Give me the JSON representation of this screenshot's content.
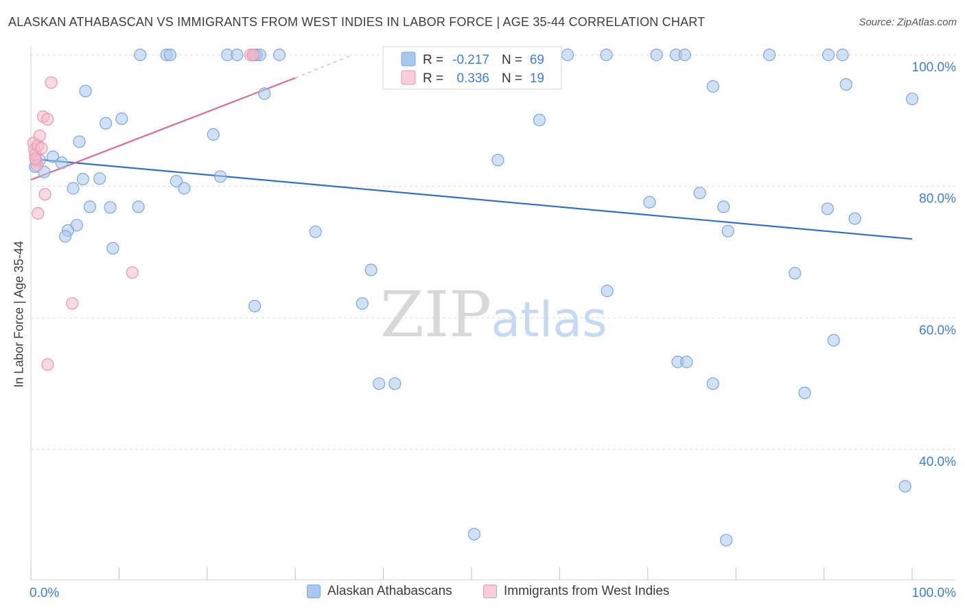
{
  "header": {
    "title": "ALASKAN ATHABASCAN VS IMMIGRANTS FROM WEST INDIES IN LABOR FORCE | AGE 35-44 CORRELATION CHART",
    "source": "Source: ZipAtlas.com"
  },
  "watermark": {
    "zip": "ZIP",
    "atlas": "atlas"
  },
  "colors": {
    "blue_fill": "#a9c8ef",
    "blue_stroke": "#7aa6dd",
    "blue_line": "#2f6fcc",
    "pink_fill": "#f5b9cb",
    "pink_stroke": "#e996b0",
    "pink_line": "#e06a94",
    "grid": "#d9d9d9",
    "axis_text": "#3f7fd0"
  },
  "chart_data": {
    "type": "scatter",
    "title": "ALASKAN ATHABASCAN VS IMMIGRANTS FROM WEST INDIES IN LABOR FORCE | AGE 35-44 CORRELATION CHART",
    "xlabel": "",
    "ylabel": "In Labor Force | Age 35-44",
    "xlim": [
      0,
      100
    ],
    "ylim": [
      20,
      101
    ],
    "x_tick_labels": [
      "0.0%",
      "100.0%"
    ],
    "y_ticks": [
      40,
      60,
      80,
      100
    ],
    "y_tick_labels": [
      "40.0%",
      "60.0%",
      "80.0%",
      "100.0%"
    ],
    "grid": true,
    "legend": [
      {
        "name": "Alaskan Athabascans",
        "R_label": "R =",
        "R": "-0.217",
        "N_label": "N =",
        "N": "69"
      },
      {
        "name": "Immigrants from West Indies",
        "R_label": "R =",
        "R": "0.336",
        "N_label": "N =",
        "N": "19"
      }
    ],
    "series": [
      {
        "name": "Alaskan Athabascans",
        "trend": {
          "x0": 0,
          "y0": 84.2,
          "x1": 100,
          "y1": 72.0
        },
        "points": [
          [
            0.5,
            83.0
          ],
          [
            1.0,
            84.0
          ],
          [
            1.5,
            82.2
          ],
          [
            2.5,
            84.5
          ],
          [
            3.5,
            83.6
          ],
          [
            4.8,
            79.7
          ],
          [
            5.2,
            74.1
          ],
          [
            4.2,
            73.3
          ],
          [
            3.9,
            72.4
          ],
          [
            5.5,
            86.8
          ],
          [
            6.2,
            94.5
          ],
          [
            5.9,
            81.1
          ],
          [
            7.8,
            81.2
          ],
          [
            6.7,
            76.9
          ],
          [
            8.5,
            89.6
          ],
          [
            9.0,
            76.8
          ],
          [
            9.3,
            70.6
          ],
          [
            10.3,
            90.3
          ],
          [
            12.2,
            76.9
          ],
          [
            12.4,
            100.0
          ],
          [
            15.4,
            100.0
          ],
          [
            15.8,
            100.0
          ],
          [
            16.5,
            80.8
          ],
          [
            17.4,
            79.7
          ],
          [
            20.7,
            87.9
          ],
          [
            21.5,
            81.5
          ],
          [
            22.3,
            100.0
          ],
          [
            23.4,
            100.0
          ],
          [
            25.2,
            100.0
          ],
          [
            25.4,
            100.0
          ],
          [
            25.6,
            100.0
          ],
          [
            26.0,
            100.0
          ],
          [
            25.4,
            61.8
          ],
          [
            26.5,
            94.1
          ],
          [
            28.2,
            100.0
          ],
          [
            32.3,
            73.1
          ],
          [
            38.6,
            67.3
          ],
          [
            37.6,
            62.2
          ],
          [
            39.5,
            50.0
          ],
          [
            41.3,
            50.0
          ],
          [
            50.3,
            27.1
          ],
          [
            53.0,
            84.0
          ],
          [
            57.7,
            90.1
          ],
          [
            60.9,
            100.0
          ],
          [
            65.3,
            100.0
          ],
          [
            65.4,
            64.1
          ],
          [
            70.2,
            77.6
          ],
          [
            71.0,
            100.0
          ],
          [
            73.2,
            100.0
          ],
          [
            73.4,
            53.3
          ],
          [
            74.2,
            100.0
          ],
          [
            74.4,
            53.3
          ],
          [
            75.9,
            79.0
          ],
          [
            77.4,
            95.2
          ],
          [
            77.4,
            50.0
          ],
          [
            78.6,
            76.9
          ],
          [
            78.9,
            26.2
          ],
          [
            79.1,
            73.2
          ],
          [
            83.8,
            100.0
          ],
          [
            86.7,
            66.8
          ],
          [
            87.8,
            48.6
          ],
          [
            90.4,
            76.6
          ],
          [
            90.5,
            100.0
          ],
          [
            91.1,
            56.6
          ],
          [
            92.1,
            100.0
          ],
          [
            92.5,
            95.5
          ],
          [
            93.5,
            75.1
          ],
          [
            99.2,
            34.4
          ],
          [
            100.0,
            93.3
          ]
        ]
      },
      {
        "name": "Immigrants from West Indies",
        "trend": {
          "x0": 0,
          "y0": 81.0,
          "x1": 30.0,
          "y1": 96.5,
          "dash_to_x": 36.5,
          "dash_to_y": 100.0
        },
        "points": [
          [
            0.3,
            86.6
          ],
          [
            0.4,
            85.6
          ],
          [
            0.5,
            84.8
          ],
          [
            0.6,
            83.9
          ],
          [
            0.7,
            83.2
          ],
          [
            0.8,
            86.2
          ],
          [
            1.0,
            87.7
          ],
          [
            1.2,
            85.8
          ],
          [
            1.4,
            90.6
          ],
          [
            1.6,
            78.8
          ],
          [
            1.9,
            90.2
          ],
          [
            2.3,
            95.8
          ],
          [
            0.8,
            75.9
          ],
          [
            1.9,
            52.9
          ],
          [
            4.7,
            62.2
          ],
          [
            11.5,
            66.9
          ],
          [
            24.9,
            100.0
          ],
          [
            25.2,
            100.0
          ],
          [
            0.5,
            84.2
          ]
        ]
      }
    ]
  }
}
